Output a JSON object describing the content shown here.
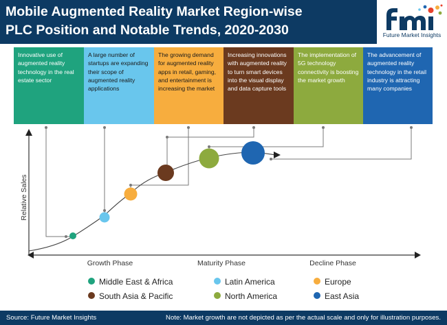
{
  "header": {
    "title_line1": "Mobile Augmented Reality Market Region-wise",
    "title_line2": "PLC Position and Notable Trends, 2020-2030",
    "logo_text": "Future Market Insights"
  },
  "boxes": [
    {
      "text": "Innovative use of augmented reality technology in the real estate sector",
      "color": "#1fa37e",
      "text_color": "#ffffff"
    },
    {
      "text": "A large number of startups are expanding their scope of augmented reality applications",
      "color": "#69c6ed",
      "text_color": "#1a1a1a"
    },
    {
      "text": "The growing demand for augmented reality apps in retail, gaming, and entertainment is increasing the market",
      "color": "#f7ad3e",
      "text_color": "#1a1a1a"
    },
    {
      "text": "Increasing innovations with augmented reality to turn smart devices into the visual display and data capture tools",
      "color": "#6b3a1f",
      "text_color": "#ffffff"
    },
    {
      "text": "The implementation of 5G technology connectivity is boosting the market growth",
      "color": "#8daa3e",
      "text_color": "#ffffff"
    },
    {
      "text": "The advancement of augmented reality technology in the retail industry is attracting many companies",
      "color": "#1f66b1",
      "text_color": "#ffffff"
    }
  ],
  "axis": {
    "y_label": "Relative Sales",
    "phases": [
      "Growth Phase",
      "Maturity Phase",
      "Decline Phase"
    ]
  },
  "legend": [
    {
      "label": "Middle East & Africa",
      "color": "#1fa37e"
    },
    {
      "label": "Latin America",
      "color": "#69c6ed"
    },
    {
      "label": "Europe",
      "color": "#f7ad3e"
    },
    {
      "label": "South Asia & Pacific",
      "color": "#6b3a1f"
    },
    {
      "label": "North America",
      "color": "#8daa3e"
    },
    {
      "label": "East Asia",
      "color": "#1f66b1"
    }
  ],
  "footer": {
    "source": "Source: Future Market Insights",
    "note": "Note: Market growth are not depicted as per the actual scale and only for illustration purposes."
  }
}
